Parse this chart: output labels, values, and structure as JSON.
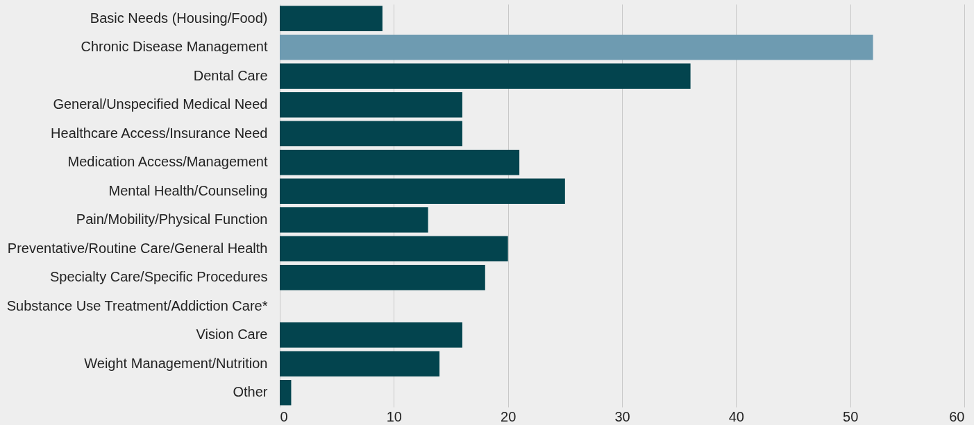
{
  "chart_data": {
    "type": "bar",
    "orientation": "horizontal",
    "categories": [
      "Basic Needs (Housing/Food)",
      "Chronic Disease Management",
      "Dental Care",
      "General/Unspecified Medical Need",
      "Healthcare Access/Insurance Need",
      "Medication Access/Management",
      "Mental Health/Counseling",
      "Pain/Mobility/Physical Function",
      "Preventative/Routine Care/General Health",
      "Specialty Care/Specific Procedures",
      "Substance Use Treatment/Addiction Care*",
      "Vision Care",
      "Weight Management/Nutrition",
      "Other"
    ],
    "values": [
      9,
      52,
      36,
      16,
      16,
      21,
      25,
      13,
      20,
      18,
      null,
      16,
      14,
      1
    ],
    "colors": [
      "#03444e",
      "#6e9bb1",
      "#03444e",
      "#03444e",
      "#03444e",
      "#03444e",
      "#03444e",
      "#03444e",
      "#03444e",
      "#03444e",
      "#03444e",
      "#03444e",
      "#03444e",
      "#03444e"
    ],
    "xlim": [
      0,
      60
    ],
    "xticks": [
      0,
      10,
      20,
      30,
      40,
      50,
      60
    ],
    "grid": "x"
  }
}
